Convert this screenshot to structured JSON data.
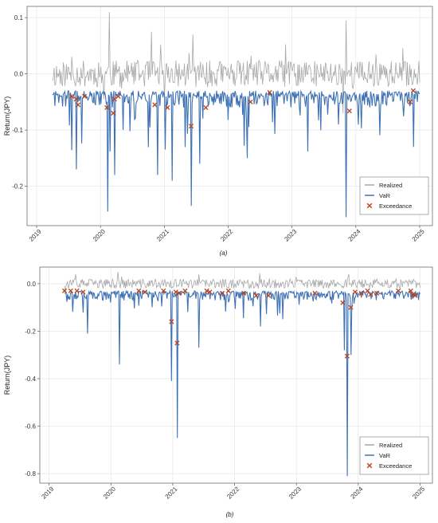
{
  "colors": {
    "realized": "#a8a8a8",
    "var": "#3e72b4",
    "exceedance": "#b8401c",
    "grid": "#e6e6e6",
    "frame": "#6e6e6e"
  },
  "chart_data": [
    {
      "type": "line",
      "caption": "(a)",
      "ylabel": "Return(JPY)",
      "xlabel": "",
      "xlim": [
        2018.85,
        2025.2
      ],
      "ylim": [
        -0.27,
        0.12
      ],
      "x_ticks": [
        "2019",
        "2020",
        "2021",
        "2022",
        "2023",
        "2024",
        "2025"
      ],
      "y_ticks": [
        {
          "value": 0.1,
          "label": "0.1"
        },
        {
          "value": 0.0,
          "label": "0.0"
        },
        {
          "value": -0.1,
          "label": "-0.1"
        },
        {
          "value": -0.2,
          "label": "-0.2"
        }
      ],
      "grid": true,
      "legend_position": "bottom-right",
      "legend": [
        {
          "label": "Realized",
          "symbol": "line",
          "color_key": "realized"
        },
        {
          "label": "VaR",
          "symbol": "line",
          "color_key": "var"
        },
        {
          "label": "Exceedance",
          "symbol": "cross",
          "color_key": "exceedance"
        }
      ],
      "series": [
        {
          "name": "Realized",
          "kind": "noise",
          "x_start": 2019.25,
          "x_end": 2025.0,
          "n": 480,
          "center": 0.0,
          "amp": 0.024,
          "spike_prob": 0.05,
          "spike_amp": 0.045,
          "seed": 11,
          "spikes": [
            {
              "x": 2020.14,
              "y": 0.11
            },
            {
              "x": 2020.05,
              "y": -0.045
            },
            {
              "x": 2020.8,
              "y": 0.075
            },
            {
              "x": 2021.45,
              "y": 0.07
            },
            {
              "x": 2023.85,
              "y": 0.095
            },
            {
              "x": 2023.8,
              "y": -0.07
            }
          ]
        },
        {
          "name": "VaR",
          "kind": "downspikes",
          "x_start": 2019.25,
          "x_end": 2025.0,
          "n": 480,
          "base": -0.03,
          "amp": 0.03,
          "spike_prob": 0.09,
          "spike_amp": 0.11,
          "seed": 23,
          "spikes": [
            {
              "x": 2019.62,
              "y": -0.17
            },
            {
              "x": 2020.12,
              "y": -0.245
            },
            {
              "x": 2020.22,
              "y": -0.18
            },
            {
              "x": 2020.9,
              "y": -0.18
            },
            {
              "x": 2021.12,
              "y": -0.19
            },
            {
              "x": 2021.42,
              "y": -0.235
            },
            {
              "x": 2021.55,
              "y": -0.16
            },
            {
              "x": 2022.3,
              "y": -0.15
            },
            {
              "x": 2023.85,
              "y": -0.255
            },
            {
              "x": 2024.9,
              "y": -0.13
            }
          ]
        }
      ],
      "exceedances": [
        {
          "x": 2019.55,
          "y": -0.04
        },
        {
          "x": 2019.62,
          "y": -0.045
        },
        {
          "x": 2019.65,
          "y": -0.055
        },
        {
          "x": 2019.75,
          "y": -0.04
        },
        {
          "x": 2020.1,
          "y": -0.06
        },
        {
          "x": 2020.2,
          "y": -0.07
        },
        {
          "x": 2020.22,
          "y": -0.045
        },
        {
          "x": 2020.28,
          "y": -0.04
        },
        {
          "x": 2020.85,
          "y": -0.055
        },
        {
          "x": 2021.05,
          "y": -0.06
        },
        {
          "x": 2021.42,
          "y": -0.093
        },
        {
          "x": 2021.65,
          "y": -0.06
        },
        {
          "x": 2022.35,
          "y": -0.05
        },
        {
          "x": 2022.65,
          "y": -0.033
        },
        {
          "x": 2023.9,
          "y": -0.066
        },
        {
          "x": 2024.85,
          "y": -0.05
        },
        {
          "x": 2024.9,
          "y": -0.03
        }
      ]
    },
    {
      "type": "line",
      "caption": "(b)",
      "ylabel": "Return(JPY)",
      "xlabel": "",
      "xlim": [
        2018.85,
        2025.2
      ],
      "ylim": [
        -0.84,
        0.07
      ],
      "x_ticks": [
        "2019",
        "2020",
        "2021",
        "2022",
        "2023",
        "2024",
        "2025"
      ],
      "y_ticks": [
        {
          "value": 0.0,
          "label": "0.0"
        },
        {
          "value": -0.2,
          "label": "-0.2"
        },
        {
          "value": -0.4,
          "label": "-0.4"
        },
        {
          "value": -0.6,
          "label": "-0.6"
        },
        {
          "value": -0.8,
          "label": "-0.8"
        }
      ],
      "grid": true,
      "legend_position": "bottom-right",
      "legend": [
        {
          "label": "Realized",
          "symbol": "line",
          "color_key": "realized"
        },
        {
          "label": "VaR",
          "symbol": "line",
          "color_key": "var"
        },
        {
          "label": "Exceedance",
          "symbol": "cross",
          "color_key": "exceedance"
        }
      ],
      "series": [
        {
          "name": "Realized",
          "kind": "noise",
          "x_start": 2019.25,
          "x_end": 2025.0,
          "n": 480,
          "center": 0.0,
          "amp": 0.02,
          "spike_prob": 0.05,
          "spike_amp": 0.035,
          "seed": 37,
          "spikes": [
            {
              "x": 2020.12,
              "y": 0.05
            },
            {
              "x": 2021.42,
              "y": 0.04
            },
            {
              "x": 2023.85,
              "y": 0.04
            }
          ]
        },
        {
          "name": "VaR",
          "kind": "downspikes",
          "x_start": 2019.25,
          "x_end": 2025.0,
          "n": 480,
          "base": -0.03,
          "amp": 0.04,
          "spike_prob": 0.1,
          "spike_amp": 0.12,
          "seed": 53,
          "spikes": [
            {
              "x": 2019.62,
              "y": -0.21
            },
            {
              "x": 2020.14,
              "y": -0.34
            },
            {
              "x": 2020.98,
              "y": -0.41
            },
            {
              "x": 2021.07,
              "y": -0.65
            },
            {
              "x": 2021.42,
              "y": -0.27
            },
            {
              "x": 2022.42,
              "y": -0.18
            },
            {
              "x": 2023.78,
              "y": -0.28
            },
            {
              "x": 2023.82,
              "y": -0.81
            },
            {
              "x": 2023.88,
              "y": -0.3
            }
          ]
        }
      ],
      "exceedances": [
        {
          "x": 2019.25,
          "y": -0.03
        },
        {
          "x": 2019.35,
          "y": -0.03
        },
        {
          "x": 2019.45,
          "y": -0.03
        },
        {
          "x": 2019.55,
          "y": -0.035
        },
        {
          "x": 2020.45,
          "y": -0.03
        },
        {
          "x": 2020.55,
          "y": -0.035
        },
        {
          "x": 2020.85,
          "y": -0.03
        },
        {
          "x": 2020.98,
          "y": -0.16
        },
        {
          "x": 2021.05,
          "y": -0.035
        },
        {
          "x": 2021.07,
          "y": -0.25
        },
        {
          "x": 2021.1,
          "y": -0.04
        },
        {
          "x": 2021.2,
          "y": -0.03
        },
        {
          "x": 2021.55,
          "y": -0.03
        },
        {
          "x": 2021.6,
          "y": -0.035
        },
        {
          "x": 2021.8,
          "y": -0.04
        },
        {
          "x": 2021.9,
          "y": -0.03
        },
        {
          "x": 2022.15,
          "y": -0.04
        },
        {
          "x": 2022.35,
          "y": -0.05
        },
        {
          "x": 2022.55,
          "y": -0.05
        },
        {
          "x": 2023.3,
          "y": -0.04
        },
        {
          "x": 2023.75,
          "y": -0.08
        },
        {
          "x": 2023.82,
          "y": -0.305
        },
        {
          "x": 2023.88,
          "y": -0.1
        },
        {
          "x": 2023.95,
          "y": -0.035
        },
        {
          "x": 2024.05,
          "y": -0.04
        },
        {
          "x": 2024.15,
          "y": -0.03
        },
        {
          "x": 2024.2,
          "y": -0.045
        },
        {
          "x": 2024.3,
          "y": -0.04
        },
        {
          "x": 2024.65,
          "y": -0.03
        },
        {
          "x": 2024.85,
          "y": -0.03
        },
        {
          "x": 2024.88,
          "y": -0.045
        },
        {
          "x": 2024.92,
          "y": -0.05
        }
      ]
    }
  ]
}
